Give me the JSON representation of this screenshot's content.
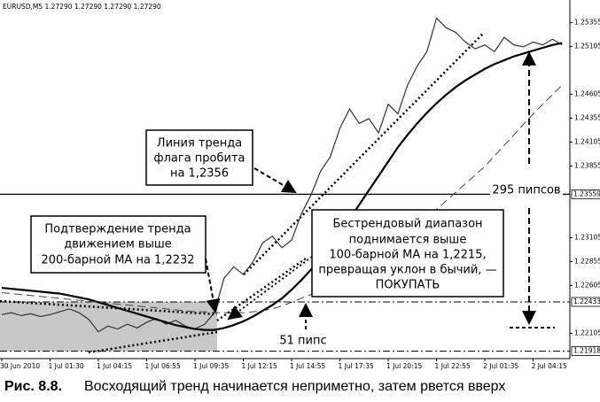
{
  "chart_data": {
    "type": "line",
    "header": "EURUSD,M5  1.27290 1.27290 1.27290 1.27290",
    "caption_number": "Рис. 8.8.",
    "caption": "Восходящий тренд начинается неприметно, затем рвется вверх",
    "categories": [
      "30 Jun 2010",
      null,
      null,
      null,
      null,
      "1 Jul 01:30",
      null,
      null,
      null,
      null,
      "1 Jul 04:15",
      null,
      null,
      null,
      null,
      "1 Jul 06:55",
      null,
      null,
      null,
      null,
      "1 Jul 09:35",
      null,
      null,
      null,
      null,
      "1 Jul 12:15",
      null,
      null,
      null,
      null,
      "1 Jul 14:55",
      null,
      null,
      null,
      null,
      "1 Jul 17:35",
      null,
      null,
      null,
      null,
      "1 Jul 20:15",
      null,
      null,
      null,
      null,
      "1 Jul 22:55",
      null,
      null,
      null,
      null,
      "2 Jul 01:35",
      null,
      null,
      null,
      null,
      "2 Jul 04:15",
      null,
      null,
      null
    ],
    "series": [
      {
        "color": "#333333",
        "style": "price",
        "values": [
          1.223,
          1.2232,
          1.2229,
          1.2231,
          1.2228,
          1.223,
          1.2233,
          1.2236,
          1.2232,
          1.2225,
          1.2212,
          1.2218,
          1.2215,
          1.222,
          1.2216,
          1.2222,
          1.2226,
          1.222,
          1.2224,
          1.2218,
          1.2215,
          1.222,
          1.2232,
          1.2268,
          1.228,
          1.2272,
          1.2285,
          1.2305,
          1.2312,
          1.23,
          1.2308,
          1.2335,
          1.2355,
          1.238,
          1.2395,
          1.2425,
          1.2445,
          1.243,
          1.2435,
          1.242,
          1.245,
          1.244,
          1.247,
          1.249,
          1.2505,
          1.254,
          1.253,
          1.2525,
          1.2515,
          1.2508,
          1.2512,
          1.2505,
          1.252,
          1.2512,
          1.251,
          1.2515,
          1.2512,
          1.2518,
          1.2512
        ]
      },
      {
        "color": "#000000",
        "style": "thick",
        "values": [
          1.2258,
          1.2257,
          1.2256,
          1.2255,
          1.2254,
          1.2253,
          1.2252,
          1.225,
          1.2248,
          1.2246,
          1.2243,
          1.224,
          1.2237,
          1.2234,
          1.2231,
          1.2228,
          1.2225,
          1.2222,
          1.2219,
          1.2217,
          1.2215,
          1.2214,
          1.2214,
          1.2216,
          1.2219,
          1.2223,
          1.2228,
          1.2234,
          1.224,
          1.2247,
          1.2256,
          1.2266,
          1.2277,
          1.2289,
          1.2302,
          1.2316,
          1.233,
          1.2345,
          1.236,
          1.2375,
          1.239,
          1.2405,
          1.2418,
          1.243,
          1.2441,
          1.2451,
          1.246,
          1.2468,
          1.2475,
          1.2481,
          1.2487,
          1.2492,
          1.2496,
          1.25,
          1.2503,
          1.2506,
          1.2509,
          1.2512,
          1.2514
        ]
      },
      {
        "color": "#444444",
        "style": "dashed",
        "values": [
          1.2253,
          1.2252,
          1.2251,
          1.225,
          1.2249,
          1.2248,
          1.2247,
          1.2246,
          1.2245,
          1.2244,
          1.2243,
          1.2242,
          1.2241,
          1.224,
          1.2239,
          1.2238,
          1.2237,
          1.2236,
          1.2235,
          1.2234,
          1.2233,
          1.2233,
          1.2232,
          1.2232,
          1.2232,
          1.2232,
          1.2233,
          1.2234,
          1.2236,
          1.2239,
          1.2243,
          1.2247,
          1.2251,
          1.2256,
          1.226,
          1.2265,
          1.2271,
          1.2277,
          1.2283,
          1.229,
          1.2297,
          1.2305,
          1.2313,
          1.2322,
          1.2331,
          1.234,
          1.2349,
          1.2358,
          1.2367,
          1.2376,
          1.2385,
          1.2396,
          1.2407,
          1.2418,
          1.2429,
          1.244,
          1.245,
          1.246,
          1.247
        ]
      }
    ],
    "ylim": [
      1.2184,
      1.2559
    ],
    "yticks": [
      1.25355,
      1.25105,
      1.24605,
      1.24355,
      1.24105,
      1.23855,
      1.23105,
      1.22855,
      1.22605,
      1.22105
    ],
    "levels": [
      {
        "value": 1.23559,
        "style": "solid"
      },
      {
        "value": 1.22433,
        "style": "dashdot"
      },
      {
        "value": 1.21918,
        "style": "dashdot"
      }
    ],
    "annotations": {
      "flag": [
        "Линия тренда",
        "флага пробита",
        "на 1,2356"
      ],
      "confirm": [
        "Подтверждение тренда",
        "движением выше",
        "200-барной МА на 1,2232"
      ],
      "range": [
        "Бестрендовый диапазон",
        "поднимается выше",
        "100-барной МА на 1,2215,",
        "превращая уклон в бычий, —",
        "ПОКУПАТЬ"
      ],
      "pips_295": "295 пипсов",
      "pips_51": "51 пипс"
    }
  }
}
